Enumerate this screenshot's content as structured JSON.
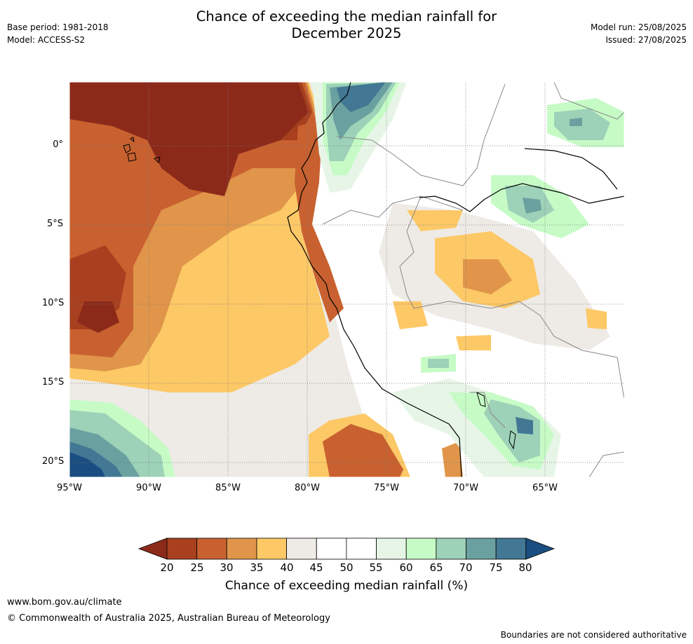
{
  "header": {
    "title_line1": "Chance of exceeding the median rainfall for",
    "title_line2": "December 2025",
    "base_period": "Base period: 1981-2018",
    "model": "Model: ACCESS-S2",
    "model_run": "Model run: 25/08/2025",
    "issued": "Issued: 27/08/2025"
  },
  "map": {
    "lat_labels": [
      "0°",
      "5°S",
      "10°S",
      "15°S",
      "20°S"
    ],
    "lon_labels": [
      "95°W",
      "90°W",
      "85°W",
      "80°W",
      "75°W",
      "70°W",
      "65°W"
    ]
  },
  "legend": {
    "title": "Chance of exceeding median rainfall (%)",
    "ticks": [
      "20",
      "25",
      "30",
      "35",
      "40",
      "45",
      "50",
      "55",
      "60",
      "65",
      "70",
      "75",
      "80"
    ],
    "colors": {
      "lt20": "#8c2a1a",
      "20-25": "#a8401f",
      "25-30": "#c8612f",
      "30-35": "#e0954a",
      "35-40": "#fdc866",
      "40-45": "#eeebe6",
      "45-50": "#ffffff",
      "50-55": "#ffffff",
      "55-60": "#e7f5e7",
      "60-65": "#c6fbc6",
      "65-70": "#9dd1b8",
      "70-75": "#6aa1a0",
      "75-80": "#427894",
      "gt80": "#1a4d80"
    }
  },
  "footer": {
    "url": "www.bom.gov.au/climate",
    "copyright": "© Commonwealth of Australia 2025, Australian Bureau of Meteorology",
    "disclaimer": "Boundaries are not considered authoritative"
  }
}
